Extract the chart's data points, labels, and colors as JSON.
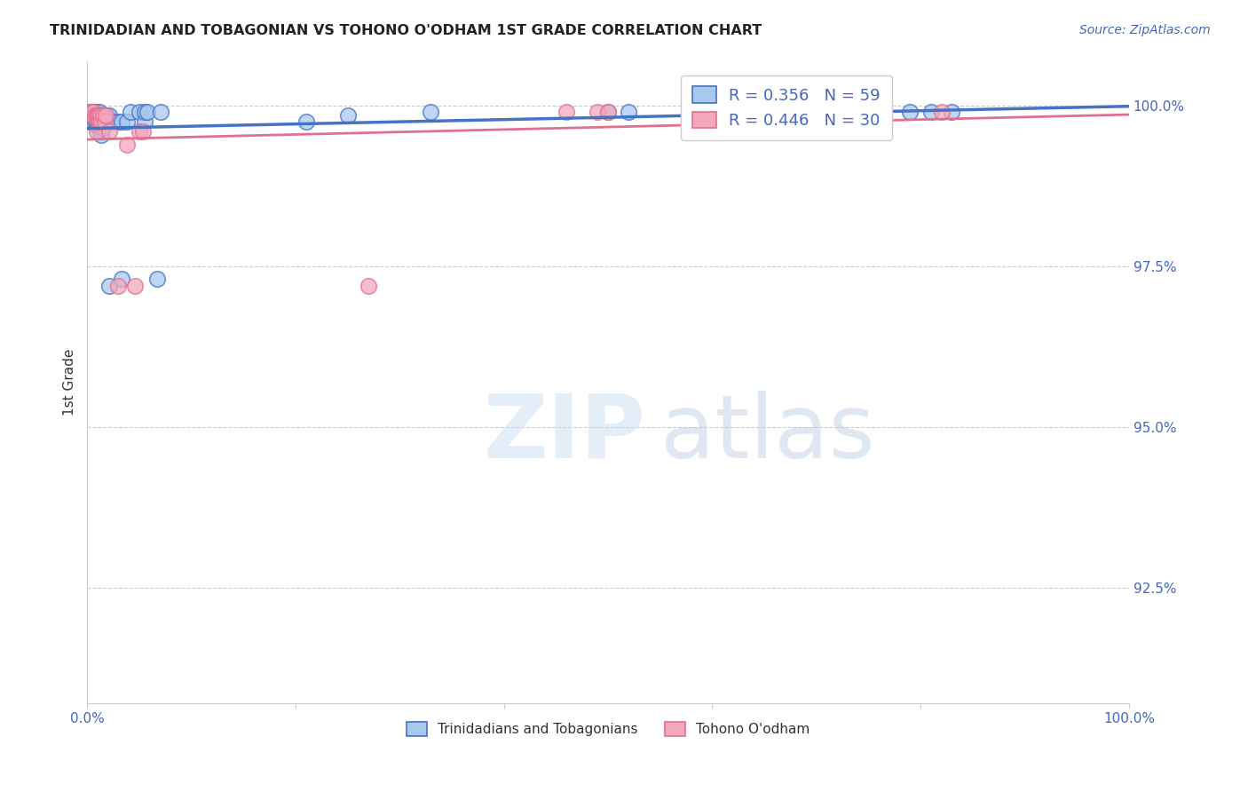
{
  "title": "TRINIDADIAN AND TOBAGONIAN VS TOHONO O'ODHAM 1ST GRADE CORRELATION CHART",
  "source": "Source: ZipAtlas.com",
  "ylabel": "1st Grade",
  "ytick_labels": [
    "100.0%",
    "97.5%",
    "95.0%",
    "92.5%"
  ],
  "ytick_values": [
    1.0,
    0.975,
    0.95,
    0.925
  ],
  "xlim": [
    0.0,
    1.0
  ],
  "ylim": [
    0.907,
    1.007
  ],
  "color_blue": "#A8C8F0",
  "color_pink": "#F4A8BC",
  "line_color_blue": "#4472C4",
  "line_color_pink": "#E07090",
  "background": "#ffffff",
  "blue_points_x": [
    0.002,
    0.003,
    0.003,
    0.004,
    0.004,
    0.005,
    0.005,
    0.006,
    0.006,
    0.007,
    0.007,
    0.008,
    0.008,
    0.009,
    0.009,
    0.01,
    0.01,
    0.011,
    0.011,
    0.011,
    0.012,
    0.012,
    0.013,
    0.013,
    0.014,
    0.014,
    0.015,
    0.015,
    0.016,
    0.018,
    0.019,
    0.021,
    0.021,
    0.021,
    0.025,
    0.03,
    0.033,
    0.033,
    0.038,
    0.042,
    0.05,
    0.055,
    0.055,
    0.058,
    0.067,
    0.071,
    0.21,
    0.25,
    0.33,
    0.5,
    0.52,
    0.58,
    0.63,
    0.67,
    0.71,
    0.75,
    0.79,
    0.81,
    0.83
  ],
  "blue_points_y": [
    0.999,
    0.9985,
    0.9975,
    0.999,
    0.9975,
    0.999,
    0.9985,
    0.999,
    0.9985,
    0.999,
    0.9985,
    0.999,
    0.9975,
    0.999,
    0.9975,
    0.9985,
    0.997,
    0.9985,
    0.9975,
    0.9965,
    0.999,
    0.9975,
    0.9985,
    0.9965,
    0.9985,
    0.9955,
    0.9985,
    0.9965,
    0.9985,
    0.9975,
    0.9985,
    0.9985,
    0.9975,
    0.972,
    0.9975,
    0.9975,
    0.973,
    0.9975,
    0.9975,
    0.999,
    0.999,
    0.9975,
    0.999,
    0.999,
    0.973,
    0.999,
    0.9975,
    0.9985,
    0.999,
    0.999,
    0.999,
    0.999,
    0.999,
    0.999,
    0.999,
    0.999,
    0.999,
    0.999,
    0.999
  ],
  "pink_points_x": [
    0.002,
    0.004,
    0.005,
    0.006,
    0.008,
    0.009,
    0.009,
    0.01,
    0.011,
    0.011,
    0.012,
    0.013,
    0.014,
    0.015,
    0.017,
    0.018,
    0.021,
    0.03,
    0.038,
    0.046,
    0.05,
    0.054,
    0.27,
    0.46,
    0.49,
    0.5,
    0.59,
    0.68,
    0.76,
    0.82
  ],
  "pink_points_y": [
    0.999,
    0.999,
    0.9985,
    0.999,
    0.9985,
    0.9985,
    0.996,
    0.9985,
    0.9985,
    0.9975,
    0.9975,
    0.9985,
    0.9975,
    0.9985,
    0.9975,
    0.9985,
    0.996,
    0.972,
    0.994,
    0.972,
    0.996,
    0.996,
    0.972,
    0.999,
    0.999,
    0.999,
    0.999,
    0.999,
    0.999,
    0.999
  ],
  "legend_blue_r": "R = 0.356",
  "legend_blue_n": "N = 59",
  "legend_pink_r": "R = 0.446",
  "legend_pink_n": "N = 30"
}
